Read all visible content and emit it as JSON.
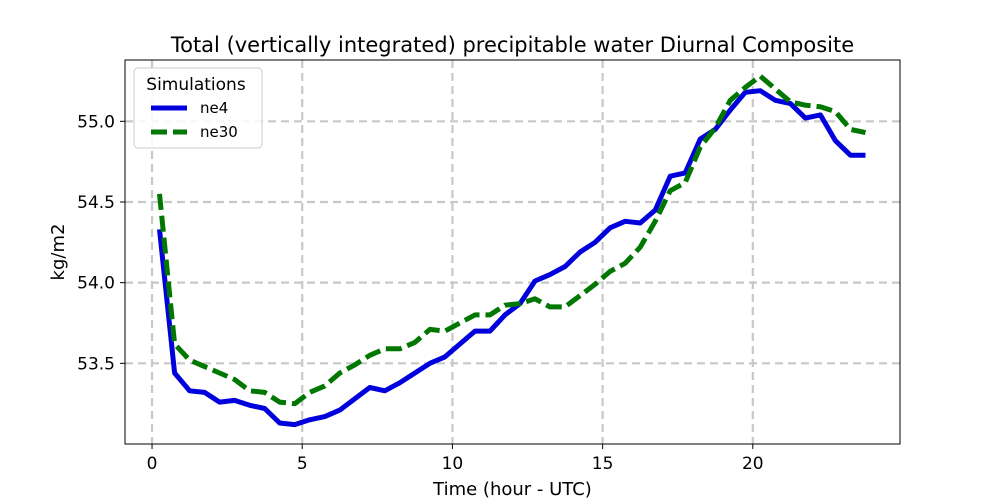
{
  "chart_data": {
    "type": "line",
    "title": "Total (vertically integrated) precipitable water Diurnal Composite",
    "xlabel": "Time (hour - UTC)",
    "ylabel": "kg/m2",
    "xlim": [
      -0.9,
      24.9
    ],
    "ylim": [
      53.0,
      55.38
    ],
    "xticks": [
      0,
      5,
      10,
      15,
      20
    ],
    "xtick_labels": [
      "0",
      "5",
      "10",
      "15",
      "20"
    ],
    "yticks": [
      53.5,
      54.0,
      54.5,
      55.0
    ],
    "ytick_labels": [
      "53.5",
      "54.0",
      "54.5",
      "55.0"
    ],
    "grid": true,
    "legend": {
      "title": "Simulations",
      "position": "top-left"
    },
    "x": [
      0.25,
      0.75,
      1.25,
      1.75,
      2.25,
      2.75,
      3.25,
      3.75,
      4.25,
      4.75,
      5.25,
      5.75,
      6.25,
      6.75,
      7.25,
      7.75,
      8.25,
      8.75,
      9.25,
      9.75,
      10.25,
      10.75,
      11.25,
      11.75,
      12.25,
      12.75,
      13.25,
      13.75,
      14.25,
      14.75,
      15.25,
      15.75,
      16.25,
      16.75,
      17.25,
      17.75,
      18.25,
      18.75,
      19.25,
      19.75,
      20.25,
      20.75,
      21.25,
      21.75,
      22.25,
      22.75,
      23.25,
      23.75
    ],
    "series": [
      {
        "name": "ne4",
        "color": "#0000dd",
        "style": "solid",
        "values": [
          54.33,
          53.44,
          53.33,
          53.32,
          53.26,
          53.27,
          53.24,
          53.22,
          53.13,
          53.12,
          53.15,
          53.17,
          53.21,
          53.28,
          53.35,
          53.33,
          53.38,
          53.44,
          53.5,
          53.54,
          53.62,
          53.7,
          53.7,
          53.8,
          53.87,
          54.01,
          54.05,
          54.1,
          54.19,
          54.25,
          54.34,
          54.38,
          54.37,
          54.45,
          54.66,
          54.68,
          54.89,
          54.95,
          55.07,
          55.18,
          55.19,
          55.13,
          55.11,
          55.02,
          55.04,
          54.88,
          54.79,
          54.79
        ]
      },
      {
        "name": "ne30",
        "color": "#007700",
        "style": "dashed",
        "values": [
          54.55,
          53.62,
          53.52,
          53.48,
          53.44,
          53.4,
          53.33,
          53.32,
          53.26,
          53.25,
          53.32,
          53.36,
          53.44,
          53.49,
          53.55,
          53.59,
          53.59,
          53.63,
          53.71,
          53.7,
          53.75,
          53.8,
          53.8,
          53.86,
          53.87,
          53.9,
          53.85,
          53.85,
          53.92,
          53.99,
          54.07,
          54.12,
          54.22,
          54.38,
          54.57,
          54.62,
          54.84,
          54.96,
          55.13,
          55.21,
          55.28,
          55.2,
          55.12,
          55.1,
          55.09,
          55.06,
          54.95,
          54.93
        ]
      }
    ]
  }
}
